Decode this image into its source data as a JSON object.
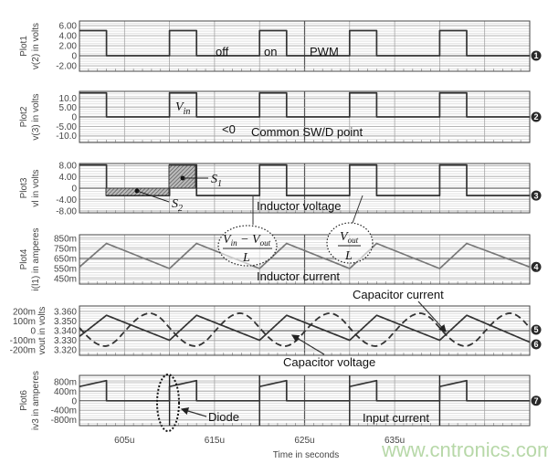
{
  "colors": {
    "trace": "#333333",
    "trace_gray": "#777777",
    "grid": "#cfcfcf",
    "grid_major": "#9a9a9a",
    "marker": "#2a2a2a",
    "watermark": "#b7d8a8"
  },
  "time_axis": {
    "xlabel": "Time in seconds",
    "xlim": [
      600,
      650
    ],
    "ticks": [
      {
        "v": 605,
        "label": "605u"
      },
      {
        "v": 615,
        "label": "615u"
      },
      {
        "v": 625,
        "label": "625u"
      },
      {
        "v": 635,
        "label": "635u"
      }
    ]
  },
  "chart_data": [
    {
      "type": "line",
      "plot_label": "Plot1",
      "ylabel": "v(2) in volts",
      "ylim": [
        -3.1,
        6.9
      ],
      "marker": "1",
      "grid": true,
      "yticks": [
        {
          "v": 6,
          "label": "6.00"
        },
        {
          "v": 4,
          "label": "4.00"
        },
        {
          "v": 2,
          "label": "2.00"
        },
        {
          "v": 0,
          "label": "0"
        },
        {
          "v": -2,
          "label": "-2.00"
        }
      ],
      "series": [
        {
          "style": "solid",
          "points": [
            [
              600,
              5
            ],
            [
              603,
              5
            ],
            [
              603,
              0
            ],
            [
              610,
              0
            ],
            [
              610,
              5
            ],
            [
              613,
              5
            ],
            [
              613,
              0
            ],
            [
              620,
              0
            ],
            [
              620,
              5
            ],
            [
              623,
              5
            ],
            [
              623,
              0
            ],
            [
              630,
              0
            ],
            [
              630,
              5
            ],
            [
              633,
              5
            ],
            [
              633,
              0
            ],
            [
              640,
              0
            ],
            [
              640,
              5
            ],
            [
              643,
              5
            ],
            [
              643,
              0
            ],
            [
              650,
              0
            ]
          ]
        }
      ]
    },
    {
      "type": "line",
      "plot_label": "Plot2",
      "ylabel": "v(3) in volts",
      "ylim": [
        -13.5,
        13.5
      ],
      "marker": "2",
      "grid": true,
      "yticks": [
        {
          "v": 10,
          "label": "10.0"
        },
        {
          "v": 5,
          "label": "5.00"
        },
        {
          "v": 0,
          "label": "0"
        },
        {
          "v": -5,
          "label": "-5.00"
        },
        {
          "v": -10,
          "label": "-10.0"
        }
      ],
      "series": [
        {
          "style": "solid",
          "points": [
            [
              600,
              12.7
            ],
            [
              603,
              12.7
            ],
            [
              603,
              0
            ],
            [
              610,
              0
            ],
            [
              610,
              12.7
            ],
            [
              613,
              12.7
            ],
            [
              613,
              0
            ],
            [
              620,
              0
            ],
            [
              620,
              12.7
            ],
            [
              623,
              12.7
            ],
            [
              623,
              0
            ],
            [
              630,
              0
            ],
            [
              630,
              12.7
            ],
            [
              633,
              12.7
            ],
            [
              633,
              0
            ],
            [
              640,
              0
            ],
            [
              640,
              12.7
            ],
            [
              643,
              12.7
            ],
            [
              643,
              0
            ],
            [
              650,
              0
            ]
          ]
        }
      ]
    },
    {
      "type": "line",
      "plot_label": "Plot3",
      "ylabel": "vl in volts",
      "ylim": [
        -8.7,
        8.7
      ],
      "marker": "3",
      "grid": true,
      "yticks": [
        {
          "v": 8,
          "label": "8.00"
        },
        {
          "v": 4,
          "label": "4.00"
        },
        {
          "v": 0,
          "label": "0"
        },
        {
          "v": -4,
          "label": "-4.00"
        },
        {
          "v": -8,
          "label": "-8.00"
        }
      ],
      "series": [
        {
          "style": "solid",
          "points": [
            [
              600,
              8.2
            ],
            [
              603,
              8.2
            ],
            [
              603,
              -2.6
            ],
            [
              610,
              -2.6
            ],
            [
              610,
              8.2
            ],
            [
              613,
              8.2
            ],
            [
              613,
              -2.6
            ],
            [
              620,
              -2.6
            ],
            [
              620,
              8.2
            ],
            [
              623,
              8.2
            ],
            [
              623,
              -2.6
            ],
            [
              630,
              -2.6
            ],
            [
              630,
              8.2
            ],
            [
              633,
              8.2
            ],
            [
              633,
              -2.6
            ],
            [
              640,
              -2.6
            ],
            [
              640,
              8.2
            ],
            [
              643,
              8.2
            ],
            [
              643,
              -2.6
            ],
            [
              650,
              -2.6
            ]
          ]
        }
      ]
    },
    {
      "type": "line",
      "plot_label": "Plot4",
      "ylabel": "i(l1) in amperes",
      "ylim": [
        0.395,
        0.886
      ],
      "marker": "4",
      "grid": true,
      "yticks": [
        {
          "v": 0.85,
          "label": "850m"
        },
        {
          "v": 0.75,
          "label": "750m"
        },
        {
          "v": 0.65,
          "label": "650m"
        },
        {
          "v": 0.55,
          "label": "550m"
        },
        {
          "v": 0.45,
          "label": "450m"
        }
      ],
      "series": [
        {
          "style": "gray",
          "points": [
            [
              600,
              0.565
            ],
            [
              603,
              0.8
            ],
            [
              610,
              0.55
            ],
            [
              613,
              0.8
            ],
            [
              620,
              0.55
            ],
            [
              623,
              0.8
            ],
            [
              630,
              0.55
            ],
            [
              633,
              0.8
            ],
            [
              640,
              0.55
            ],
            [
              643,
              0.8
            ],
            [
              650,
              0.565
            ]
          ]
        }
      ]
    },
    {
      "type": "line",
      "ylabel": "vout in volts",
      "ylim": [
        -0.257,
        0.257
      ],
      "ylim_right": [
        3.3143,
        3.3657
      ],
      "markers": [
        "5",
        "6"
      ],
      "grid": true,
      "yticks": [
        {
          "v": 0.2,
          "label": "200m"
        },
        {
          "v": 0.1,
          "label": "100m"
        },
        {
          "v": 0,
          "label": "0"
        },
        {
          "v": -0.1,
          "label": "-100m"
        },
        {
          "v": -0.2,
          "label": "-200m"
        }
      ],
      "yticks_right": [
        {
          "v": 3.36,
          "label": "3.360"
        },
        {
          "v": 3.35,
          "label": "3.350"
        },
        {
          "v": 3.34,
          "label": "3.340"
        },
        {
          "v": 3.33,
          "label": "3.330"
        },
        {
          "v": 3.32,
          "label": "3.320"
        }
      ],
      "series": [
        {
          "style": "solid",
          "axis": "left",
          "points": [
            [
              600,
              -0.06
            ],
            [
              603,
              0.16
            ],
            [
              610,
              -0.1
            ],
            [
              613,
              0.16
            ],
            [
              620,
              -0.1
            ],
            [
              623,
              0.16
            ],
            [
              630,
              -0.1
            ],
            [
              633,
              0.16
            ],
            [
              640,
              -0.1
            ],
            [
              643,
              0.16
            ],
            [
              650,
              -0.12
            ]
          ]
        },
        {
          "style": "dashed",
          "axis": "right",
          "x_start": 600,
          "x_step": 1,
          "values": [
            3.343,
            3.333,
            3.326,
            3.324,
            3.329,
            3.339,
            3.349,
            3.356,
            3.358,
            3.353,
            3.343,
            3.333,
            3.326,
            3.324,
            3.329,
            3.339,
            3.349,
            3.356,
            3.358,
            3.353,
            3.343,
            3.333,
            3.326,
            3.324,
            3.329,
            3.339,
            3.349,
            3.356,
            3.358,
            3.353,
            3.343,
            3.333,
            3.326,
            3.324,
            3.329,
            3.339,
            3.349,
            3.356,
            3.358,
            3.353,
            3.343,
            3.333,
            3.326,
            3.324,
            3.329,
            3.339,
            3.349,
            3.356,
            3.358,
            3.353,
            3.343
          ]
        }
      ]
    },
    {
      "type": "line",
      "plot_label": "Plot6",
      "ylabel": "iv3 in amperes",
      "ylim": [
        -1.05,
        1.07
      ],
      "marker": "7",
      "grid": true,
      "yticks": [
        {
          "v": 0.8,
          "label": "800m"
        },
        {
          "v": 0.4,
          "label": "400m"
        },
        {
          "v": 0,
          "label": "0"
        },
        {
          "v": -0.4,
          "label": "-400m"
        },
        {
          "v": -0.8,
          "label": "-800m"
        }
      ],
      "series": [
        {
          "style": "solid",
          "points": [
            [
              600,
              0.6
            ],
            [
              603,
              0.85
            ],
            [
              603,
              0
            ],
            [
              610,
              0
            ],
            [
              610,
              0.6
            ],
            [
              613,
              0.85
            ],
            [
              613,
              0
            ],
            [
              620,
              0
            ],
            [
              620,
              0.6
            ],
            [
              623,
              0.85
            ],
            [
              623,
              0
            ],
            [
              630,
              0
            ],
            [
              630,
              0.6
            ],
            [
              633,
              0.85
            ],
            [
              633,
              0
            ],
            [
              640,
              0
            ],
            [
              640,
              0.6
            ],
            [
              643,
              0.85
            ],
            [
              643,
              0
            ],
            [
              650,
              0
            ]
          ]
        }
      ],
      "spikes": [
        610,
        620,
        630,
        640
      ]
    }
  ],
  "annotations": {
    "off": "off",
    "on": "on",
    "pwm": "PWM",
    "vin_v": "V",
    "vin_sub": "in",
    "less_zero": "<0",
    "common_point": "Common SW/D point",
    "s1": "S",
    "s1_sub": "1",
    "s2": "S",
    "s2_sub": "2",
    "inductor_voltage": "Inductor voltage",
    "inductor_current": "Inductor current",
    "rise_num_v1": "V",
    "rise_num_sub1": "in",
    "rise_minus": " − ",
    "rise_num_v2": "V",
    "rise_num_sub2": "out",
    "rise_den": "L",
    "fall_num_v": "V",
    "fall_num_sub": "out",
    "fall_den": "L",
    "capacitor_current": "Capacitor current",
    "capacitor_voltage": "Capacitor voltage",
    "diode": "Diode",
    "input_current": "Input current"
  },
  "watermark": "www.cntronics.com"
}
